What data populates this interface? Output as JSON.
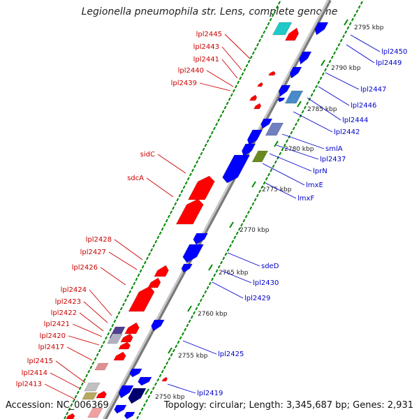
{
  "title": "Legionella pneumophila str. Lens, complete genome",
  "accession": "Accession: NC_006369",
  "topology": "Topology: circular; Length: 3,345,687 bp; Genes: 2,931",
  "colors": {
    "forward_gene": "#ff0000",
    "reverse_gene": "#0000ff",
    "label_forward": "#cc0000",
    "label_reverse": "#0000cc",
    "tick": "#008800",
    "backbone": "#888888",
    "kbp_text": "#222222"
  },
  "kbp_ticks": [
    "2750 kbp",
    "2755 kbp",
    "2760 kbp",
    "2765 kbp",
    "2770 kbp",
    "2775 kbp",
    "2780 kbp",
    "2785 kbp",
    "2790 kbp",
    "2795 kbp"
  ],
  "left_labels": [
    "lpl2445",
    "lpl2443",
    "lpl2441",
    "lpl2440",
    "lpl2439",
    "sidC",
    "sdcA",
    "lpl2428",
    "lpl2427",
    "lpl2426",
    "lpl2424",
    "lpl2423",
    "lpl2422",
    "lpl2421",
    "lpl2420",
    "lpl2417",
    "lpl2415",
    "lpl2414",
    "lpl2413"
  ],
  "right_labels": [
    "lpl2450",
    "lpl2449",
    "lpl2447",
    "lpl2446",
    "lpl2444",
    "lpl2442",
    "smlA",
    "lpl2437",
    "lprN",
    "lmxE",
    "lmxF",
    "sdeD",
    "lpl2430",
    "lpl2429",
    "lpl2425",
    "lpl2419"
  ]
}
